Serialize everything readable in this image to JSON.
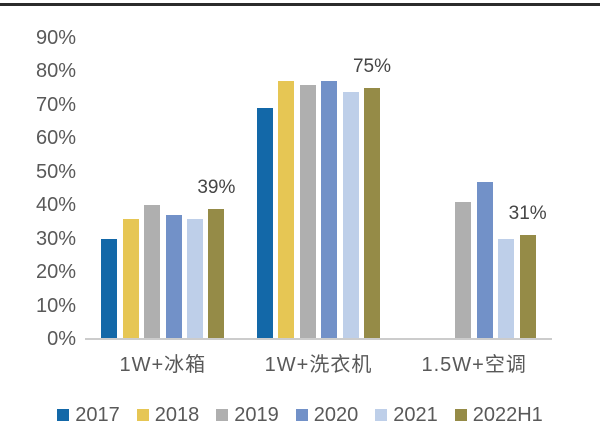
{
  "chart_data": {
    "type": "bar",
    "categories": [
      "1W+冰箱",
      "1W+洗衣机",
      "1.5W+空调"
    ],
    "series": [
      {
        "name": "2017",
        "color": "#1368A8",
        "values": [
          30,
          69,
          null
        ]
      },
      {
        "name": "2018",
        "color": "#E6C654",
        "values": [
          36,
          77,
          null
        ]
      },
      {
        "name": "2019",
        "color": "#AFAFAF",
        "values": [
          40,
          76,
          41
        ]
      },
      {
        "name": "2020",
        "color": "#7291C8",
        "values": [
          37,
          77,
          47
        ]
      },
      {
        "name": "2021",
        "color": "#BECFE9",
        "values": [
          36,
          74,
          30
        ]
      },
      {
        "name": "2022H1",
        "color": "#958B47",
        "values": [
          39,
          75,
          31
        ]
      }
    ],
    "data_labels": [
      {
        "category_index": 0,
        "series_index": 5,
        "text": "39%"
      },
      {
        "category_index": 1,
        "series_index": 5,
        "text": "75%"
      },
      {
        "category_index": 2,
        "series_index": 5,
        "text": "31%"
      }
    ],
    "y_axis": {
      "min": 0,
      "max": 90,
      "step": 10,
      "tick_labels": [
        "0%",
        "10%",
        "20%",
        "30%",
        "40%",
        "50%",
        "60%",
        "70%",
        "80%",
        "90%"
      ]
    },
    "grid": false,
    "legend_position": "bottom",
    "colors": {
      "axis_text": "#595959",
      "data_label_text": "#454545",
      "baseline": "#cccccc",
      "top_rule": "#2b2b2b",
      "background": "#ffffff"
    }
  }
}
